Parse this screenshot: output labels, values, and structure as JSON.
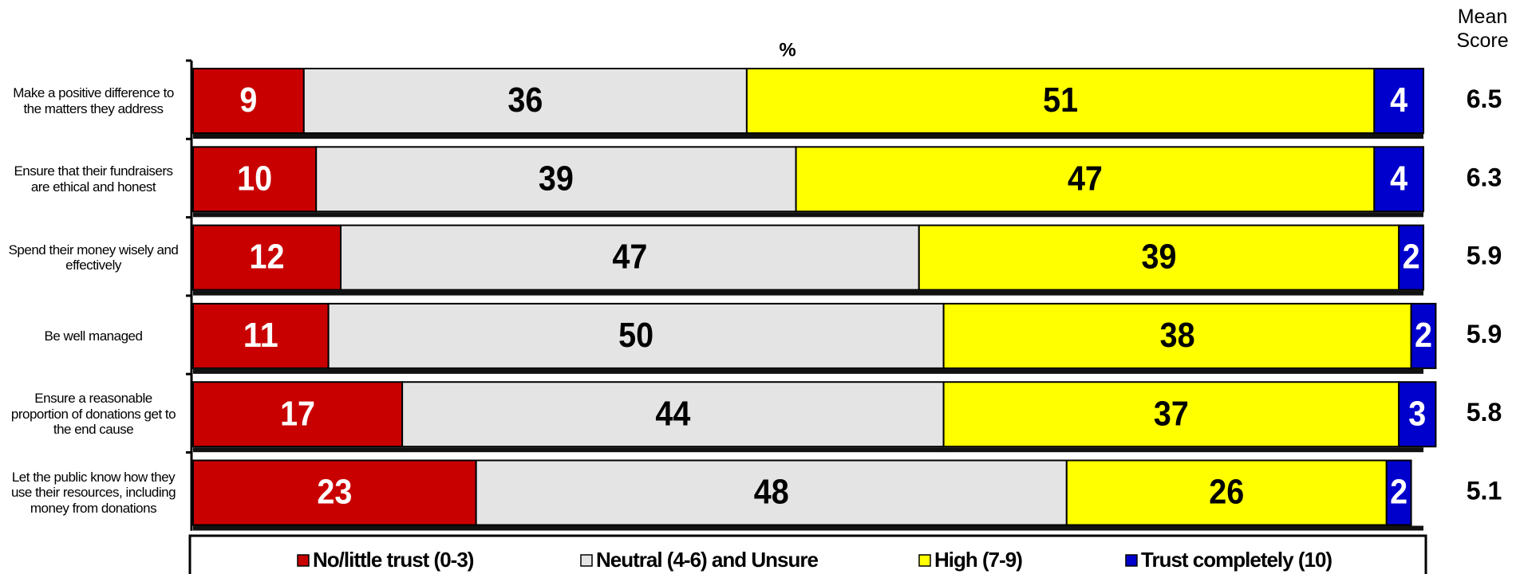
{
  "chart_data": {
    "type": "stacked_bar",
    "orientation": "horizontal",
    "unit_label": "%",
    "categories": [
      "Make a positive difference to the matters they address",
      "Ensure that their fundraisers are ethical and honest",
      "Spend their money wisely and effectively",
      "Be well managed",
      "Ensure a reasonable proportion of donations get to the end cause",
      "Let the public know how they use their resources, including money from donations"
    ],
    "series": [
      {
        "name": "No/little trust (0-3)",
        "color": "#c80000",
        "label_color": "#ffffff",
        "values": [
          9,
          10,
          12,
          11,
          17,
          23
        ]
      },
      {
        "name": "Neutral (4-6) and Unsure",
        "color": "#e4e4e4",
        "label_color": "#000000",
        "values": [
          36,
          39,
          47,
          50,
          44,
          48
        ]
      },
      {
        "name": "High (7-9)",
        "color": "#ffff00",
        "label_color": "#000000",
        "values": [
          51,
          47,
          39,
          38,
          37,
          26
        ]
      },
      {
        "name": "Trust completely (10)",
        "color": "#0000cc",
        "label_color": "#ffffff",
        "values": [
          4,
          4,
          2,
          2,
          3,
          2
        ]
      }
    ],
    "xlim": [
      0,
      100
    ],
    "mean_score_label": "Mean Score",
    "mean_scores": [
      6.5,
      6.3,
      5.9,
      5.9,
      5.8,
      5.1
    ]
  }
}
